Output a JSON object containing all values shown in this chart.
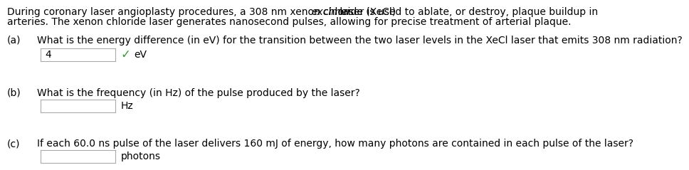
{
  "bg_color": "#ffffff",
  "text_color": "#000000",
  "line1_before": "During coronary laser angioplasty procedures, a 308 nm xenon chloride (XeCl) ",
  "line1_italic": "excimer",
  "line1_after": " laser is used to ablate, or destroy, plaque buildup in",
  "line2": "arteries. The xenon chloride laser generates nanosecond pulses, allowing for precise treatment of arterial plaque.",
  "para_fontsize": 10.0,
  "q_fontsize": 10.0,
  "qa": [
    {
      "label": "(a)",
      "question": "What is the energy difference (in eV) for the transition between the two laser levels in the XeCl laser that emits 308 nm radiation?",
      "input_value": "4",
      "unit": "eV",
      "has_check": true,
      "check_color": "#3a9a3a"
    },
    {
      "label": "(b)",
      "question": "What is the frequency (in Hz) of the pulse produced by the laser?",
      "input_value": "",
      "unit": "Hz",
      "has_check": false
    },
    {
      "label": "(c)",
      "question": "If each 60.0 ns pulse of the laser delivers 160 mJ of energy, how many photons are contained in each pulse of the laser?",
      "input_value": "",
      "unit": "photons",
      "has_check": false
    }
  ]
}
